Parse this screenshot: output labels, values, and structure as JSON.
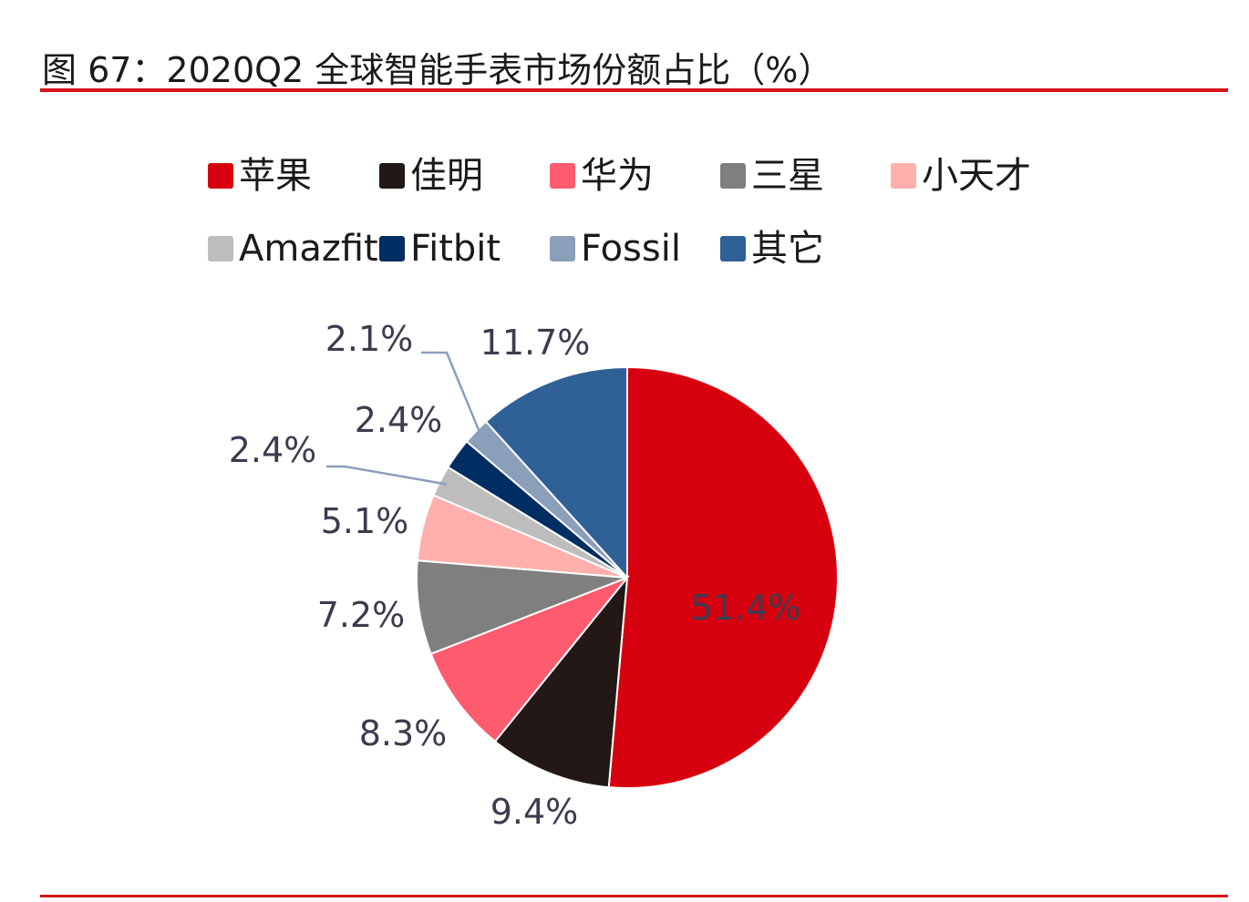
{
  "title": "图 67：2020Q2 全球智能手表市场份额占比（%）",
  "chart_data": {
    "type": "pie",
    "title": "图 67：2020Q2 全球智能手表市场份额占比（%）",
    "legend_position": "top",
    "slices": [
      {
        "name": "苹果",
        "value": 51.4,
        "label": "51.4%",
        "color": "#d7000f"
      },
      {
        "name": "佳明",
        "value": 9.4,
        "label": "9.4%",
        "color": "#231815"
      },
      {
        "name": "华为",
        "value": 8.3,
        "label": "8.3%",
        "color": "#fd5b6e"
      },
      {
        "name": "三星",
        "value": 7.2,
        "label": "7.2%",
        "color": "#7f7f7f"
      },
      {
        "name": "小天才",
        "value": 5.1,
        "label": "5.1%",
        "color": "#ffb0ad"
      },
      {
        "name": "Amazfit",
        "value": 2.4,
        "label": "2.4%",
        "color": "#bdbdbd"
      },
      {
        "name": "Fitbit",
        "value": 2.4,
        "label": "2.4%",
        "color": "#002d62"
      },
      {
        "name": "Fossil",
        "value": 2.1,
        "label": "2.1%",
        "color": "#8a9fba"
      },
      {
        "name": "其它",
        "value": 11.7,
        "label": "11.7%",
        "color": "#2f6096"
      }
    ]
  }
}
